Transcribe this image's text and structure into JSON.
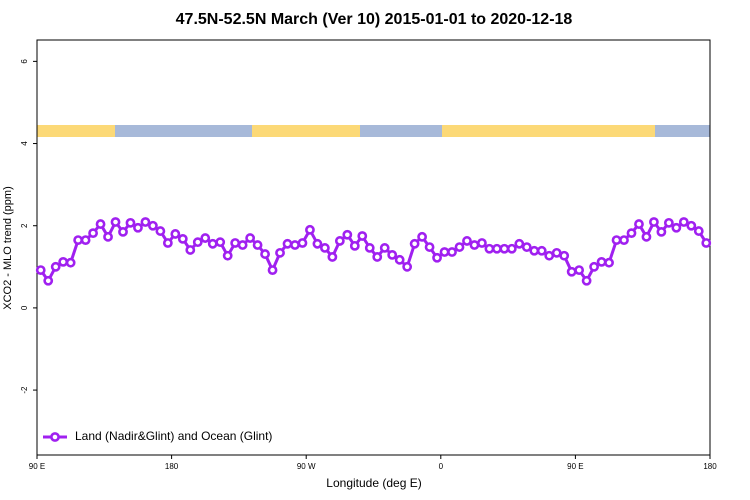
{
  "chart_data": {
    "type": "line",
    "title": "47.5N-52.5N March (Ver 10)   2015-01-01 to 2020-12-18",
    "x_label": "Longitude (deg E)",
    "y_label": "XCO2 - MLO trend (ppm)",
    "x": [
      92.5,
      97.5,
      102.5,
      107.5,
      112.5,
      117.5,
      122.5,
      127.5,
      132.5,
      137.5,
      142.5,
      147.5,
      152.5,
      157.5,
      162.5,
      167.5,
      172.5,
      177.5,
      182.5,
      187.5,
      192.5,
      197.5,
      202.5,
      207.5,
      212.5,
      217.5,
      222.5,
      227.5,
      232.5,
      237.5,
      242.5,
      247.5,
      252.5,
      257.5,
      262.5,
      267.5,
      272.5,
      277.5,
      282.5,
      287.5,
      292.5,
      297.5,
      302.5,
      307.5,
      312.5,
      317.5,
      322.5,
      327.5,
      332.5,
      337.5,
      342.5,
      347.5,
      352.5,
      357.5,
      362.5,
      367.5,
      372.5,
      377.5,
      382.5,
      387.5,
      392.5,
      397.5,
      402.5,
      407.5,
      412.5,
      417.5,
      422.5,
      427.5,
      432.5,
      437.5,
      442.5,
      447.5,
      452.5,
      457.5,
      462.5,
      467.5,
      472.5,
      477.5,
      482.5,
      487.5,
      492.5,
      497.5,
      502.5,
      507.5,
      512.5,
      517.5,
      522.5,
      527.5,
      532.5,
      537.5
    ],
    "series": [
      {
        "name": "Land (Nadir&Glint) and Ocean (Glint)",
        "color": "#a020f0",
        "values": [
          0.92,
          0.66,
          1.0,
          1.12,
          1.1,
          1.65,
          1.65,
          1.82,
          2.04,
          1.73,
          2.09,
          1.85,
          2.07,
          1.95,
          2.09,
          2.0,
          1.87,
          1.58,
          1.8,
          1.68,
          1.41,
          1.6,
          1.7,
          1.56,
          1.6,
          1.27,
          1.58,
          1.53,
          1.7,
          1.53,
          1.31,
          0.92,
          1.34,
          1.56,
          1.53,
          1.58,
          1.9,
          1.56,
          1.46,
          1.24,
          1.63,
          1.78,
          1.51,
          1.75,
          1.46,
          1.24,
          1.46,
          1.29,
          1.17,
          1.0,
          1.56,
          1.73,
          1.48,
          1.22,
          1.36,
          1.36,
          1.48,
          1.63,
          1.53,
          1.58,
          1.44,
          1.44,
          1.44,
          1.44,
          1.56,
          1.48,
          1.39,
          1.39,
          1.27,
          1.34,
          1.27,
          0.88,
          0.92,
          0.66,
          1.0,
          1.12,
          1.1,
          1.65,
          1.65,
          1.82,
          2.04,
          1.73,
          2.09,
          1.85,
          2.07,
          1.95,
          2.09,
          2.0,
          1.87,
          1.58
        ]
      }
    ],
    "xlim": [
      90,
      540
    ],
    "xticks": [
      {
        "value": 90,
        "label": "90 E"
      },
      180,
      {
        "value": 270,
        "label": "90 W"
      },
      {
        "value": 360,
        "label": "0"
      },
      {
        "value": 450,
        "label": "90 E"
      },
      {
        "value": 540,
        "label": "180"
      }
    ],
    "ylim": [
      -3.58,
      6.52
    ],
    "yticks": [
      -2,
      0,
      2,
      4,
      6
    ],
    "legend": "bottomleft"
  }
}
